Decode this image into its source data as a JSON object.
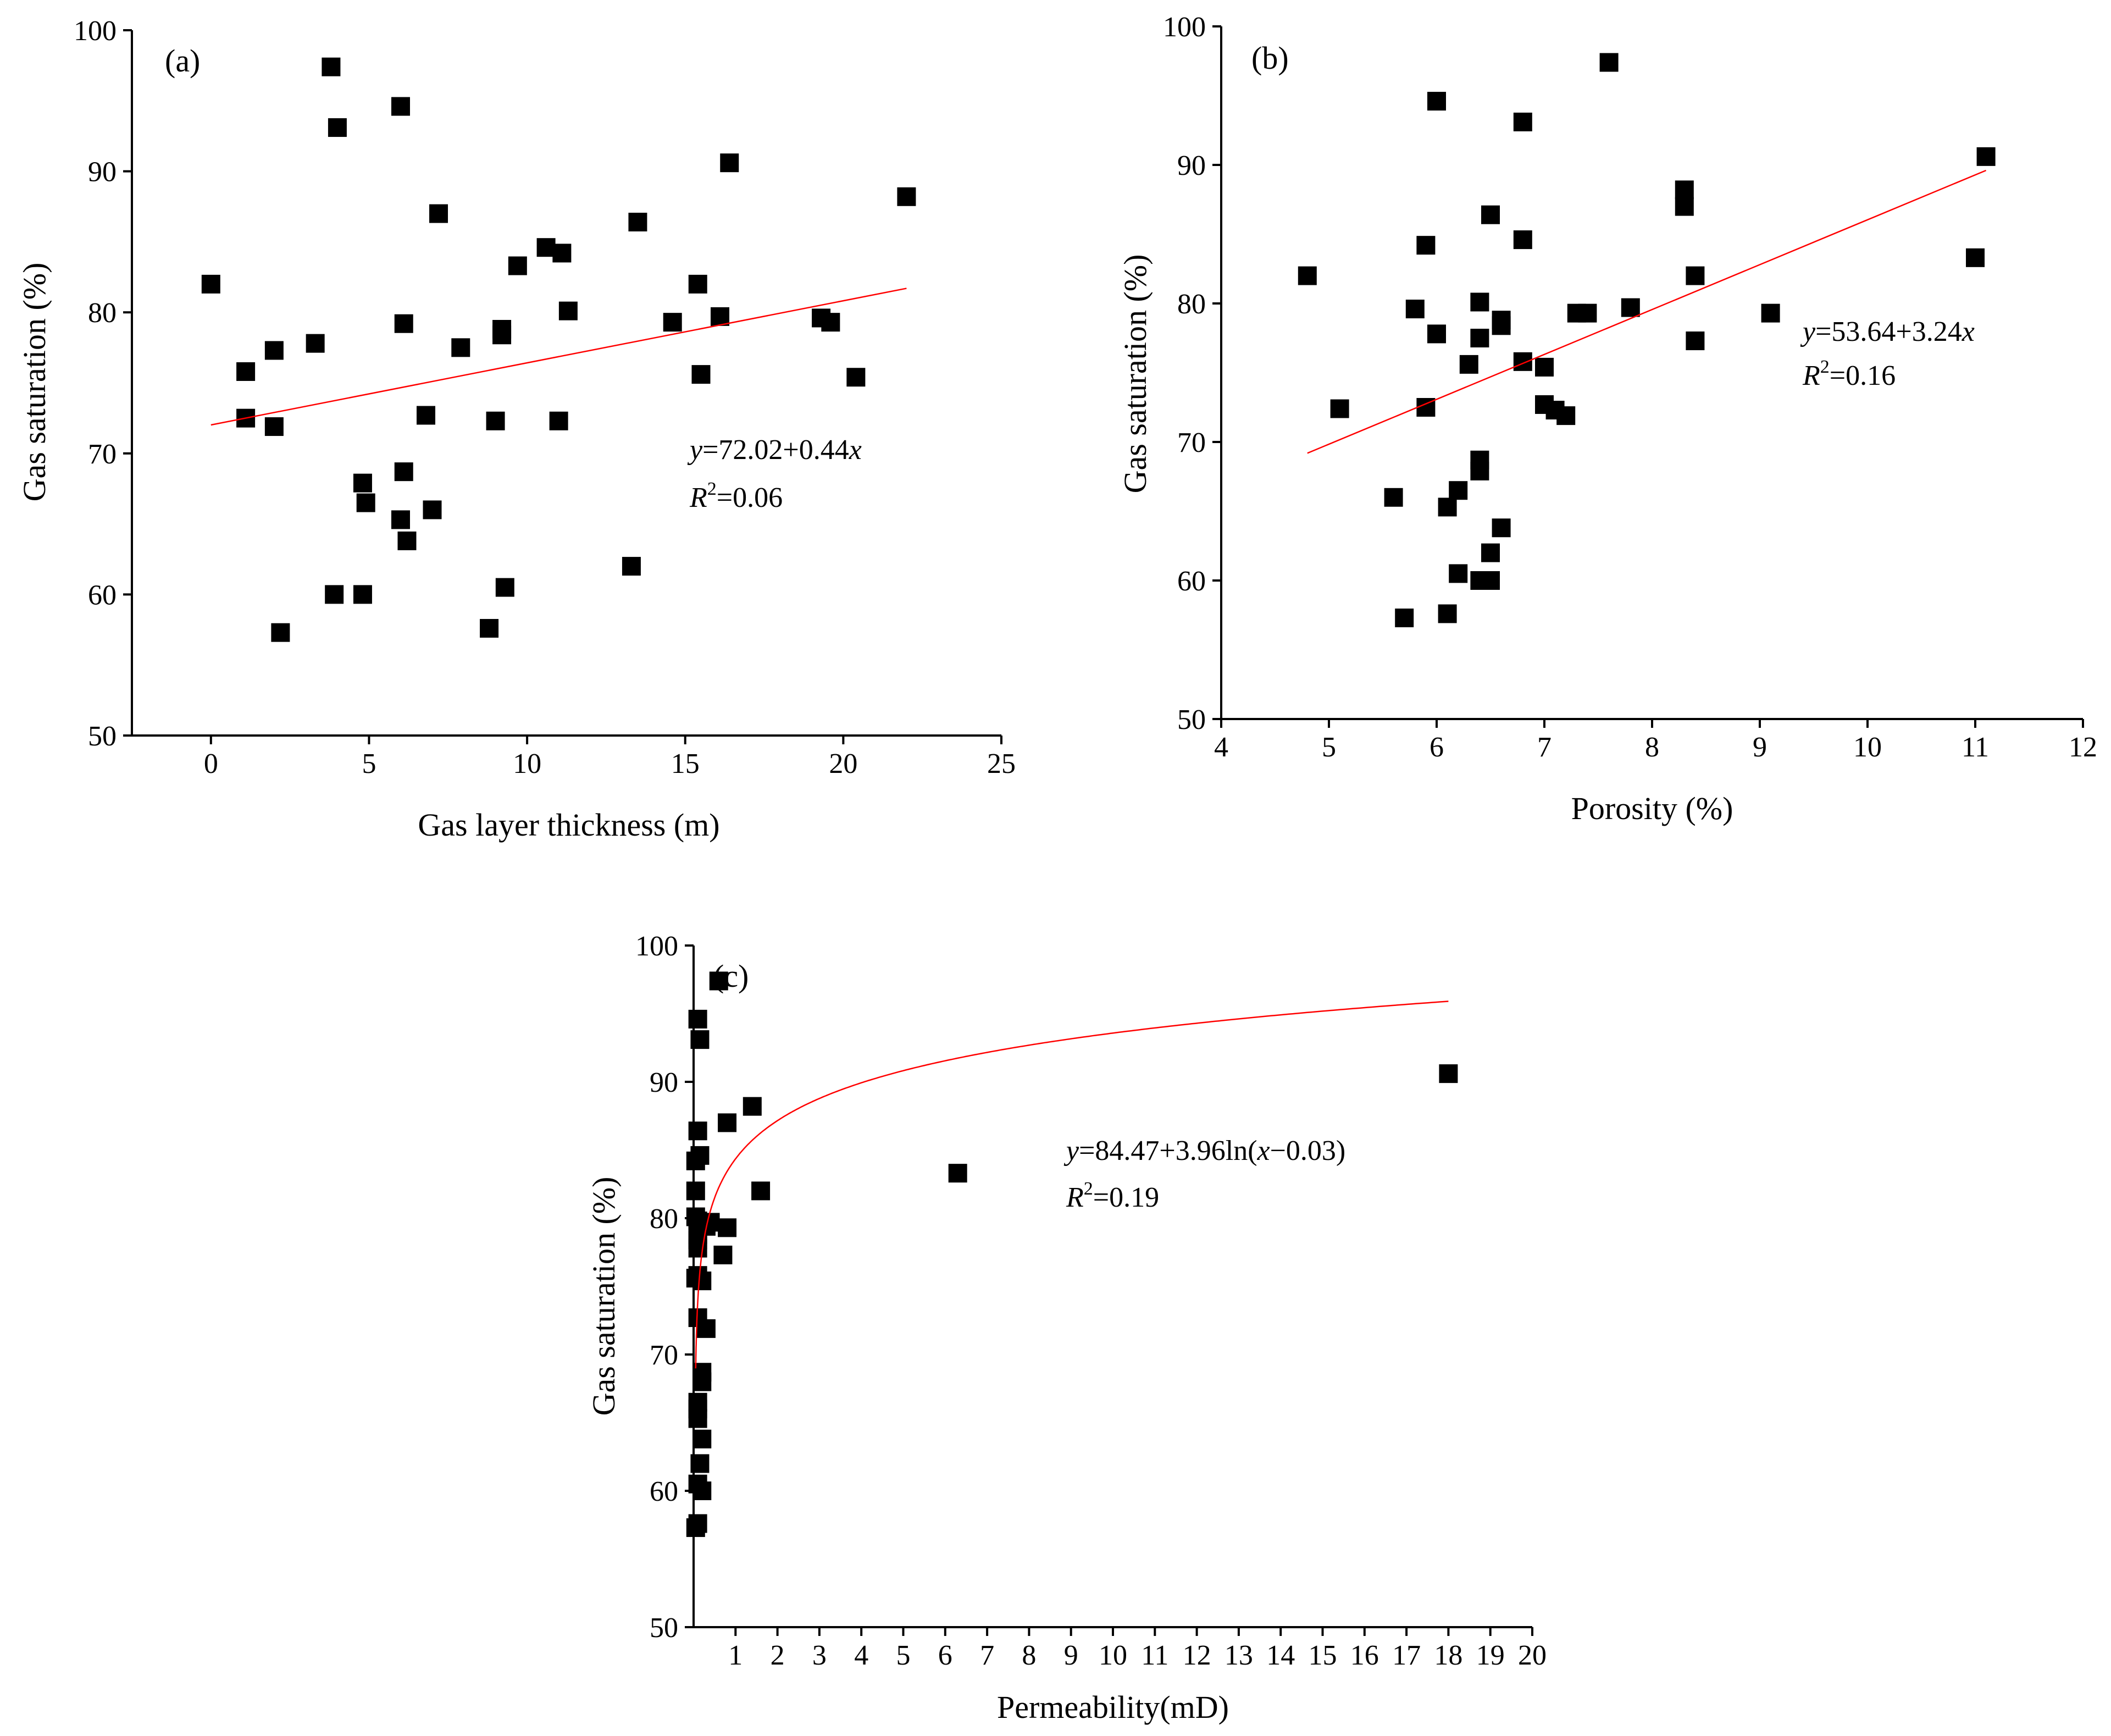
{
  "colors": {
    "points": "#000000",
    "fit_line": "#ff0000",
    "background": "#ffffff"
  },
  "chart_data": [
    {
      "id": "a",
      "type": "scatter",
      "panel_label": "(a)",
      "xlabel": "Gas layer thickness (m)",
      "ylabel": "Gas saturation (%)",
      "xlim": [
        -2.5,
        25
      ],
      "ylim": [
        50,
        100
      ],
      "xticks": [
        0,
        5,
        10,
        15,
        20,
        25
      ],
      "yticks": [
        50,
        60,
        70,
        80,
        90,
        100
      ],
      "xtick_labels": [
        "0",
        "5",
        "10",
        "15",
        "20",
        "25"
      ],
      "ytick_labels": [
        "50",
        "60",
        "70",
        "80",
        "90",
        "100"
      ],
      "fit": {
        "type": "linear",
        "a": 72.02,
        "b": 0.44,
        "x_range": [
          0,
          22
        ]
      },
      "equation": {
        "y_var": "y",
        "eq_body": "=72.02+0.44",
        "x_var": "x",
        "r_var": "R",
        "r_sup": "2",
        "r_value": "=0.06"
      },
      "points": [
        [
          0,
          82
        ],
        [
          1.1,
          75.8
        ],
        [
          1.1,
          72.5
        ],
        [
          2,
          77.3
        ],
        [
          2,
          71.9
        ],
        [
          2.2,
          57.3
        ],
        [
          3.3,
          77.8
        ],
        [
          3.8,
          97.4
        ],
        [
          3.9,
          60
        ],
        [
          4,
          93.1
        ],
        [
          4.8,
          67.9
        ],
        [
          4.8,
          60
        ],
        [
          4.9,
          66.5
        ],
        [
          6,
          94.6
        ],
        [
          6,
          65.3
        ],
        [
          6.1,
          79.2
        ],
        [
          6.1,
          68.7
        ],
        [
          6.2,
          63.8
        ],
        [
          6.8,
          72.7
        ],
        [
          7,
          66
        ],
        [
          7.2,
          87
        ],
        [
          7.9,
          77.5
        ],
        [
          8.8,
          57.6
        ],
        [
          9,
          72.3
        ],
        [
          9.2,
          78.8
        ],
        [
          9.2,
          78.4
        ],
        [
          9.3,
          60.5
        ],
        [
          9.7,
          83.3
        ],
        [
          10.6,
          84.6
        ],
        [
          11,
          72.3
        ],
        [
          11.1,
          84.2
        ],
        [
          11.3,
          80.1
        ],
        [
          13.3,
          62
        ],
        [
          13.5,
          86.4
        ],
        [
          14.6,
          79.3
        ],
        [
          15.4,
          82
        ],
        [
          15.5,
          75.6
        ],
        [
          16.1,
          79.7
        ],
        [
          16.4,
          90.6
        ],
        [
          19.3,
          79.6
        ],
        [
          19.6,
          79.3
        ],
        [
          20.4,
          75.4
        ],
        [
          22,
          88.2
        ]
      ]
    },
    {
      "id": "b",
      "type": "scatter",
      "panel_label": "(b)",
      "xlabel": "Porosity (%)",
      "ylabel": "Gas saturation (%)",
      "xlim": [
        4,
        12
      ],
      "ylim": [
        50,
        100
      ],
      "xticks": [
        4,
        5,
        6,
        7,
        8,
        9,
        10,
        11,
        12
      ],
      "yticks": [
        50,
        60,
        70,
        80,
        90,
        100
      ],
      "xtick_labels": [
        "4",
        "5",
        "6",
        "7",
        "8",
        "9",
        "10",
        "11",
        "12"
      ],
      "ytick_labels": [
        "50",
        "60",
        "70",
        "80",
        "90",
        "100"
      ],
      "fit": {
        "type": "linear",
        "a": 53.64,
        "b": 3.24,
        "x_range": [
          4.8,
          11.1
        ]
      },
      "equation": {
        "y_var": "y",
        "eq_body": "=53.64+3.24",
        "x_var": "x",
        "r_var": "R",
        "r_sup": "2",
        "r_value": "=0.16"
      },
      "points": [
        [
          4.8,
          82
        ],
        [
          5.1,
          72.4
        ],
        [
          5.6,
          66
        ],
        [
          5.7,
          57.3
        ],
        [
          5.8,
          79.6
        ],
        [
          5.9,
          72.5
        ],
        [
          5.9,
          84.2
        ],
        [
          6,
          94.6
        ],
        [
          6,
          77.8
        ],
        [
          6.1,
          57.6
        ],
        [
          6.1,
          65.3
        ],
        [
          6.2,
          66.5
        ],
        [
          6.2,
          60.5
        ],
        [
          6.3,
          75.6
        ],
        [
          6.4,
          67.9
        ],
        [
          6.4,
          68.7
        ],
        [
          6.4,
          60
        ],
        [
          6.4,
          80.1
        ],
        [
          6.4,
          77.5
        ],
        [
          6.5,
          86.4
        ],
        [
          6.5,
          60
        ],
        [
          6.5,
          62
        ],
        [
          6.6,
          78.8
        ],
        [
          6.6,
          78.4
        ],
        [
          6.6,
          63.8
        ],
        [
          6.8,
          84.6
        ],
        [
          6.8,
          75.8
        ],
        [
          6.8,
          93.1
        ],
        [
          7,
          75.4
        ],
        [
          7,
          72.7
        ],
        [
          7.1,
          72.3
        ],
        [
          7.2,
          71.9
        ],
        [
          7.3,
          79.3
        ],
        [
          7.4,
          79.3
        ],
        [
          7.6,
          97.4
        ],
        [
          7.8,
          79.7
        ],
        [
          8.3,
          88.2
        ],
        [
          8.3,
          87
        ],
        [
          8.4,
          82
        ],
        [
          8.4,
          77.3
        ],
        [
          9.1,
          79.3
        ],
        [
          11,
          83.3
        ],
        [
          11.1,
          90.6
        ]
      ]
    },
    {
      "id": "c",
      "type": "scatter",
      "panel_label": "(c)",
      "xlabel": "Permeability(mD)",
      "ylabel": "Gas saturation (%)",
      "xlim": [
        0,
        20
      ],
      "ylim": [
        50,
        100
      ],
      "xticks": [
        1,
        2,
        3,
        4,
        5,
        6,
        7,
        8,
        9,
        10,
        11,
        12,
        13,
        14,
        15,
        16,
        17,
        18,
        19,
        20
      ],
      "yticks": [
        50,
        60,
        70,
        80,
        90,
        100
      ],
      "xtick_labels": [
        "1",
        "2",
        "3",
        "4",
        "5",
        "6",
        "7",
        "8",
        "9",
        "10",
        "11",
        "12",
        "13",
        "14",
        "15",
        "16",
        "17",
        "18",
        "19",
        "20"
      ],
      "ytick_labels": [
        "50",
        "60",
        "70",
        "80",
        "90",
        "100"
      ],
      "fit": {
        "type": "log",
        "a": 84.47,
        "b": 3.96,
        "c": 0.03,
        "x_range": [
          0.05,
          18
        ]
      },
      "equation": {
        "y_var": "y",
        "eq_body": "=84.47+3.96ln(",
        "x_var": "x",
        "eq_tail": "−0.03)",
        "r_var": "R",
        "r_sup": "2",
        "r_value": "=0.19"
      },
      "points": [
        [
          0.1,
          94.6
        ],
        [
          0.15,
          93.1
        ],
        [
          0.6,
          97.4
        ],
        [
          0.1,
          86.4
        ],
        [
          0.15,
          84.6
        ],
        [
          0.05,
          84.2
        ],
        [
          0.05,
          82
        ],
        [
          0.05,
          80.1
        ],
        [
          0.1,
          79.8
        ],
        [
          0.2,
          79.6
        ],
        [
          0.3,
          79.4
        ],
        [
          0.4,
          79.7
        ],
        [
          0.1,
          78.8
        ],
        [
          0.1,
          78.4
        ],
        [
          0.1,
          77.8
        ],
        [
          0.05,
          75.6
        ],
        [
          0.1,
          75.8
        ],
        [
          0.2,
          75.4
        ],
        [
          0.1,
          72.7
        ],
        [
          0.3,
          71.9
        ],
        [
          0.2,
          68.7
        ],
        [
          0.2,
          68
        ],
        [
          0.1,
          66.5
        ],
        [
          0.1,
          66
        ],
        [
          0.1,
          65.3
        ],
        [
          0.2,
          63.8
        ],
        [
          0.15,
          62
        ],
        [
          0.1,
          60.5
        ],
        [
          0.2,
          60
        ],
        [
          0.1,
          57.6
        ],
        [
          0.05,
          57.3
        ],
        [
          0.8,
          87
        ],
        [
          1.4,
          88.2
        ],
        [
          0.7,
          77.3
        ],
        [
          0.8,
          79.3
        ],
        [
          1.6,
          82
        ],
        [
          6.3,
          83.3
        ],
        [
          18,
          90.6
        ]
      ]
    }
  ]
}
